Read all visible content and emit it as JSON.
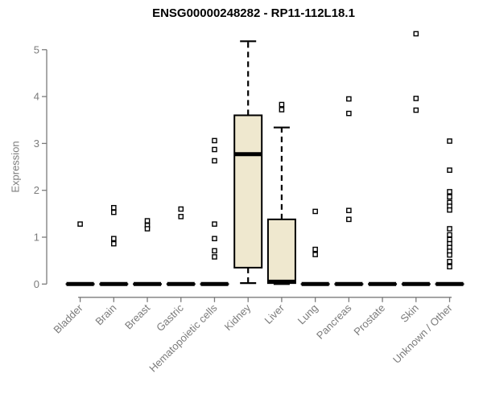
{
  "chart_data": {
    "type": "boxplot",
    "title": "ENSG00000248282 - RP11-112L18.1",
    "ylabel": "Expression",
    "xlabel": "",
    "ylim": [
      0,
      5
    ],
    "yticks": [
      0,
      1,
      2,
      3,
      4,
      5
    ],
    "grid": false,
    "legend": "none",
    "box_fill": "#EFE8CF",
    "box_stroke": "#000000",
    "axis_color": "#7b7b7b",
    "label_color": "#7b7b7b",
    "title_color": "#000000",
    "categories": [
      "Bladder",
      "Brain",
      "Breast",
      "Gastric",
      "Hematopoietic cells",
      "Kidney",
      "Liver",
      "Lung",
      "Pancreas",
      "Prostate",
      "Skin",
      "Unknown / Other"
    ],
    "boxes": [
      {
        "category": "Bladder",
        "whisker_low": 0,
        "q1": 0,
        "median": 0,
        "q3": 0,
        "whisker_high": 0,
        "outliers": [
          1.28
        ]
      },
      {
        "category": "Brain",
        "whisker_low": 0,
        "q1": 0,
        "median": 0,
        "q3": 0,
        "whisker_high": 0,
        "outliers": [
          1.63,
          1.53,
          0.97,
          0.86
        ]
      },
      {
        "category": "Breast",
        "whisker_low": 0,
        "q1": 0,
        "median": 0,
        "q3": 0,
        "whisker_high": 0,
        "outliers": [
          1.35,
          1.25,
          1.18
        ]
      },
      {
        "category": "Gastric",
        "whisker_low": 0,
        "q1": 0,
        "median": 0,
        "q3": 0,
        "whisker_high": 0,
        "outliers": [
          1.6,
          1.44
        ]
      },
      {
        "category": "Hematopoietic cells",
        "whisker_low": 0,
        "q1": 0,
        "median": 0,
        "q3": 0,
        "whisker_high": 0,
        "outliers": [
          3.06,
          2.87,
          2.63,
          1.28,
          0.97,
          0.71,
          0.58
        ]
      },
      {
        "category": "Kidney",
        "whisker_low": 0.02,
        "q1": 0.35,
        "median": 2.77,
        "q3": 3.6,
        "whisker_high": 5.18,
        "outliers": []
      },
      {
        "category": "Liver",
        "whisker_low": 0,
        "q1": 0.02,
        "median": 0.05,
        "q3": 1.38,
        "whisker_high": 3.34,
        "outliers": [
          3.83,
          3.72
        ]
      },
      {
        "category": "Lung",
        "whisker_low": 0,
        "q1": 0,
        "median": 0,
        "q3": 0,
        "whisker_high": 0,
        "outliers": [
          1.55,
          0.74,
          0.63
        ]
      },
      {
        "category": "Pancreas",
        "whisker_low": 0,
        "q1": 0,
        "median": 0,
        "q3": 0,
        "whisker_high": 0,
        "outliers": [
          3.95,
          3.64,
          1.57,
          1.38
        ]
      },
      {
        "category": "Prostate",
        "whisker_low": 0,
        "q1": 0,
        "median": 0,
        "q3": 0,
        "whisker_high": 0,
        "outliers": []
      },
      {
        "category": "Skin",
        "whisker_low": 0,
        "q1": 0,
        "median": 0,
        "q3": 0,
        "whisker_high": 0,
        "outliers": [
          5.34,
          3.96,
          3.71
        ]
      },
      {
        "category": "Unknown / Other",
        "whisker_low": 0,
        "q1": 0,
        "median": 0,
        "q3": 0,
        "whisker_high": 0,
        "outliers": [
          3.05,
          2.43,
          1.97,
          1.86,
          1.74,
          1.66,
          1.58,
          1.18,
          1.05,
          0.95,
          0.86,
          0.78,
          0.7,
          0.62,
          0.48,
          0.37
        ]
      }
    ]
  }
}
